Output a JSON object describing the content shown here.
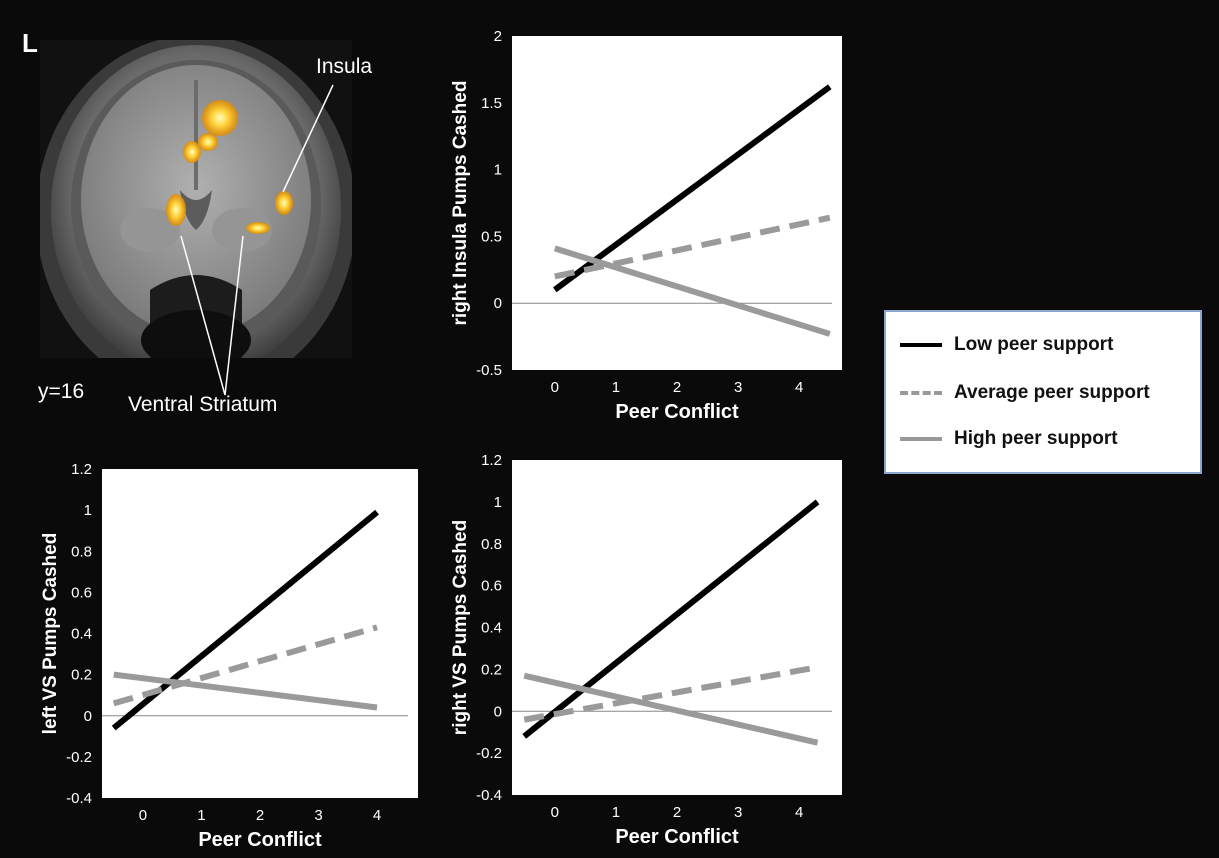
{
  "panel_letter": "L",
  "brain": {
    "labels": {
      "insula": "Insula",
      "ventral_striatum": "Ventral Striatum",
      "slice": "y=16"
    }
  },
  "legend": {
    "items": [
      {
        "label": "Low peer support",
        "color": "#000000",
        "style": "solid"
      },
      {
        "label": "Average peer support",
        "color": "#999999",
        "style": "dashed"
      },
      {
        "label": "High peer support",
        "color": "#999999",
        "style": "solid"
      }
    ]
  },
  "chart_data": [
    {
      "type": "line",
      "xlabel": "Peer Conflict",
      "ylabel": "right Insula Pumps Cashed",
      "xticks": [
        0,
        1,
        2,
        3,
        4
      ],
      "yticks": [
        -0.5,
        0,
        0.5,
        1,
        1.5,
        2
      ],
      "ylim": [
        -0.5,
        2
      ],
      "xlim": [
        -0.7,
        4.7
      ],
      "zero_line": true,
      "series": [
        {
          "name": "Low peer support",
          "x": [
            0,
            4.5
          ],
          "y": [
            0.1,
            1.62
          ]
        },
        {
          "name": "Average peer support",
          "x": [
            0,
            4.5
          ],
          "y": [
            0.2,
            0.64
          ]
        },
        {
          "name": "High peer support",
          "x": [
            0,
            4.5
          ],
          "y": [
            0.41,
            -0.23
          ]
        }
      ]
    },
    {
      "type": "line",
      "xlabel": "Peer Conflict",
      "ylabel": "left VS Pumps Cashed",
      "xticks": [
        0,
        1,
        2,
        3,
        4
      ],
      "yticks": [
        -0.4,
        -0.2,
        0,
        0.2,
        0.4,
        0.6,
        0.8,
        1,
        1.2
      ],
      "ylim": [
        -0.4,
        1.2
      ],
      "xlim": [
        -0.7,
        4.7
      ],
      "zero_line": true,
      "series": [
        {
          "name": "Low peer support",
          "x": [
            -0.5,
            4
          ],
          "y": [
            -0.06,
            0.99
          ]
        },
        {
          "name": "Average peer support",
          "x": [
            -0.5,
            4
          ],
          "y": [
            0.06,
            0.43
          ]
        },
        {
          "name": "High peer support",
          "x": [
            -0.5,
            4
          ],
          "y": [
            0.2,
            0.04
          ]
        }
      ]
    },
    {
      "type": "line",
      "xlabel": "Peer Conflict",
      "ylabel": "right VS Pumps Cashed",
      "xticks": [
        0,
        1,
        2,
        3,
        4
      ],
      "yticks": [
        -0.4,
        -0.2,
        0,
        0.2,
        0.4,
        0.6,
        0.8,
        1,
        1.2
      ],
      "ylim": [
        -0.4,
        1.2
      ],
      "xlim": [
        -0.7,
        4.7
      ],
      "zero_line": true,
      "series": [
        {
          "name": "Low peer support",
          "x": [
            -0.5,
            4.3
          ],
          "y": [
            -0.12,
            1.0
          ]
        },
        {
          "name": "Average peer support",
          "x": [
            -0.5,
            4.3
          ],
          "y": [
            -0.04,
            0.21
          ]
        },
        {
          "name": "High peer support",
          "x": [
            -0.5,
            4.3
          ],
          "y": [
            0.17,
            -0.15
          ]
        }
      ]
    }
  ]
}
